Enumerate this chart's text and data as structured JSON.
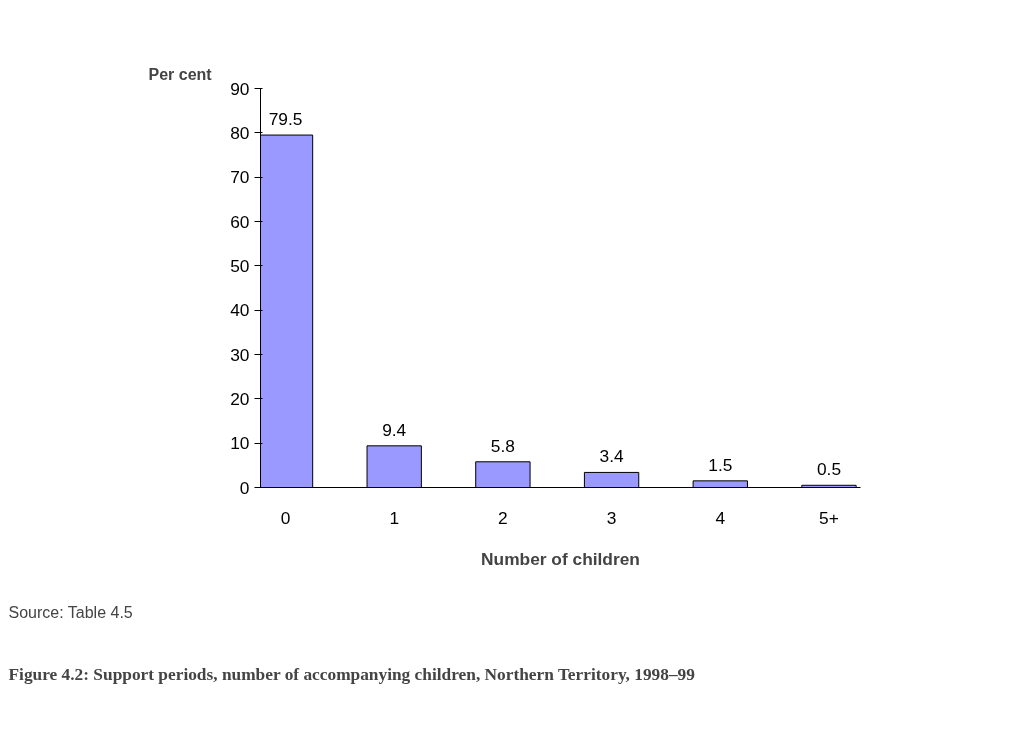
{
  "chart_data": {
    "type": "bar",
    "title": "Figure 4.2: Support periods, number of accompanying children, Northern Territory, 1998–99",
    "xlabel": "Number of children",
    "ylabel": "Per cent",
    "categories": [
      "0",
      "1",
      "2",
      "3",
      "4",
      "5+"
    ],
    "values": [
      79.5,
      9.4,
      5.8,
      3.4,
      1.5,
      0.5
    ],
    "color": "#9999ff",
    "ylim": [
      0,
      90
    ],
    "yticks": [
      0,
      10,
      20,
      30,
      40,
      50,
      60,
      70,
      80,
      90
    ],
    "data_labels": true,
    "grid": false,
    "annotations": [
      "Source: Table 4.5"
    ]
  }
}
